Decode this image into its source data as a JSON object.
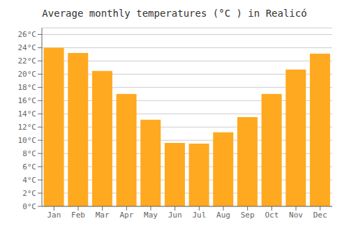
{
  "chart_data": {
    "type": "bar",
    "title": "Average monthly temperatures (°C ) in Realicó",
    "categories": [
      "Jan",
      "Feb",
      "Mar",
      "Apr",
      "May",
      "Jun",
      "Jul",
      "Aug",
      "Sep",
      "Oct",
      "Nov",
      "Dec"
    ],
    "values": [
      24.0,
      23.2,
      20.5,
      17.0,
      13.1,
      9.6,
      9.5,
      11.2,
      13.5,
      17.0,
      20.7,
      23.1
    ],
    "color": "#FFA920",
    "ylim": [
      0,
      27
    ],
    "yticks": [
      {
        "value": 0,
        "label": "0°C"
      },
      {
        "value": 2,
        "label": "2°C"
      },
      {
        "value": 4,
        "label": "4°C"
      },
      {
        "value": 6,
        "label": "6°C"
      },
      {
        "value": 8,
        "label": "8°C"
      },
      {
        "value": 10,
        "label": "10°C"
      },
      {
        "value": 12,
        "label": "12°C"
      },
      {
        "value": 14,
        "label": "14°C"
      },
      {
        "value": 16,
        "label": "16°C"
      },
      {
        "value": 18,
        "label": "18°C"
      },
      {
        "value": 20,
        "label": "20°C"
      },
      {
        "value": 22,
        "label": "22°C"
      },
      {
        "value": 24,
        "label": "24°C"
      },
      {
        "value": 26,
        "label": "26°C"
      }
    ],
    "grid": true
  }
}
